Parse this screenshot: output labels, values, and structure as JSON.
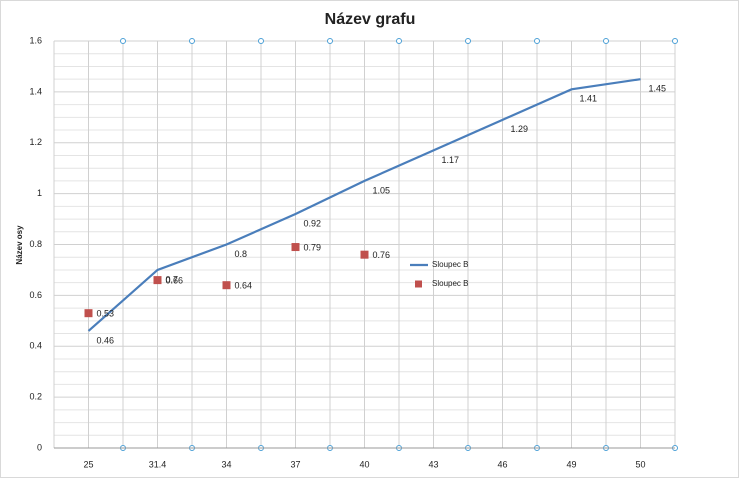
{
  "chart_data": {
    "type": "line",
    "title": "Název grafu",
    "y_label": "Název osy",
    "categories": [
      "25",
      "31.4",
      "34",
      "37",
      "40",
      "43",
      "46",
      "49",
      "50"
    ],
    "ylim": [
      0,
      1.6
    ],
    "yticks": [
      0,
      0.2,
      0.4,
      0.6,
      0.8,
      1,
      1.2,
      1.4,
      1.6
    ],
    "grid": true,
    "legend": "right",
    "series": [
      {
        "name": "Sloupec B",
        "type": "line",
        "color": "#4a7ebb",
        "values": [
          0.46,
          0.7,
          0.8,
          0.92,
          1.05,
          1.17,
          1.29,
          1.41,
          1.45
        ]
      },
      {
        "name": "Sloupec B",
        "type": "scatter",
        "color": "#c0504d",
        "values": [
          0.53,
          0.66,
          0.64,
          0.79,
          0.76,
          null,
          null,
          null,
          null
        ]
      }
    ]
  }
}
